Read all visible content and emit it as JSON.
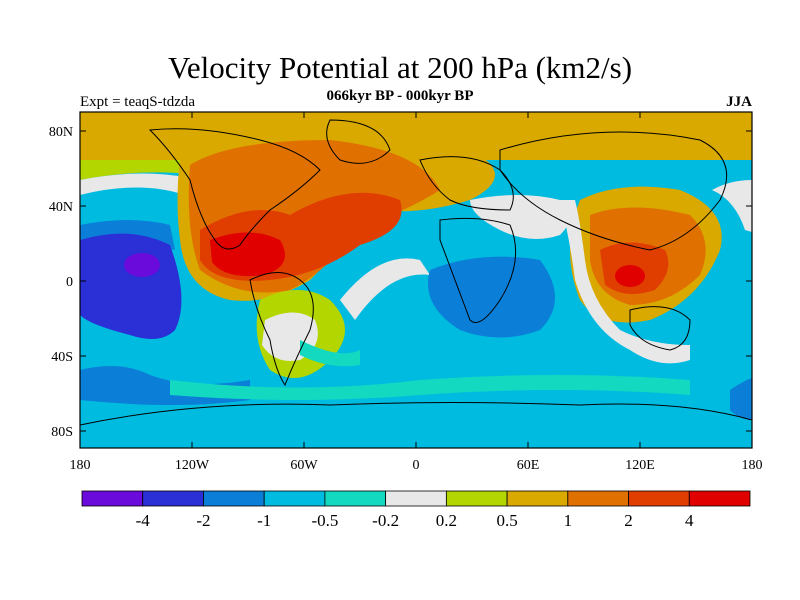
{
  "title": "Velocity Potential at 200 hPa (km2/s)",
  "subtitle": "066kyr BP - 000kyr BP",
  "left_label": "Expt = teaqS-tdzda",
  "right_label": "JJA",
  "lat_ticks": [
    "80N",
    "40N",
    "0",
    "40S",
    "80S"
  ],
  "lon_ticks": [
    "180",
    "120W",
    "60W",
    "0",
    "60E",
    "120E",
    "180"
  ],
  "colorbar": {
    "colors": [
      "#6a0adb",
      "#2a2fd6",
      "#0b7fd8",
      "#00bbe0",
      "#12d9c0",
      "#e8e8e8",
      "#b3d600",
      "#d9a900",
      "#e07000",
      "#e03e00",
      "#e00000"
    ],
    "labels": [
      "-4",
      "-2",
      "-1",
      "-0.5",
      "-0.2",
      "0.2",
      "0.5",
      "1",
      "2",
      "4"
    ]
  }
}
